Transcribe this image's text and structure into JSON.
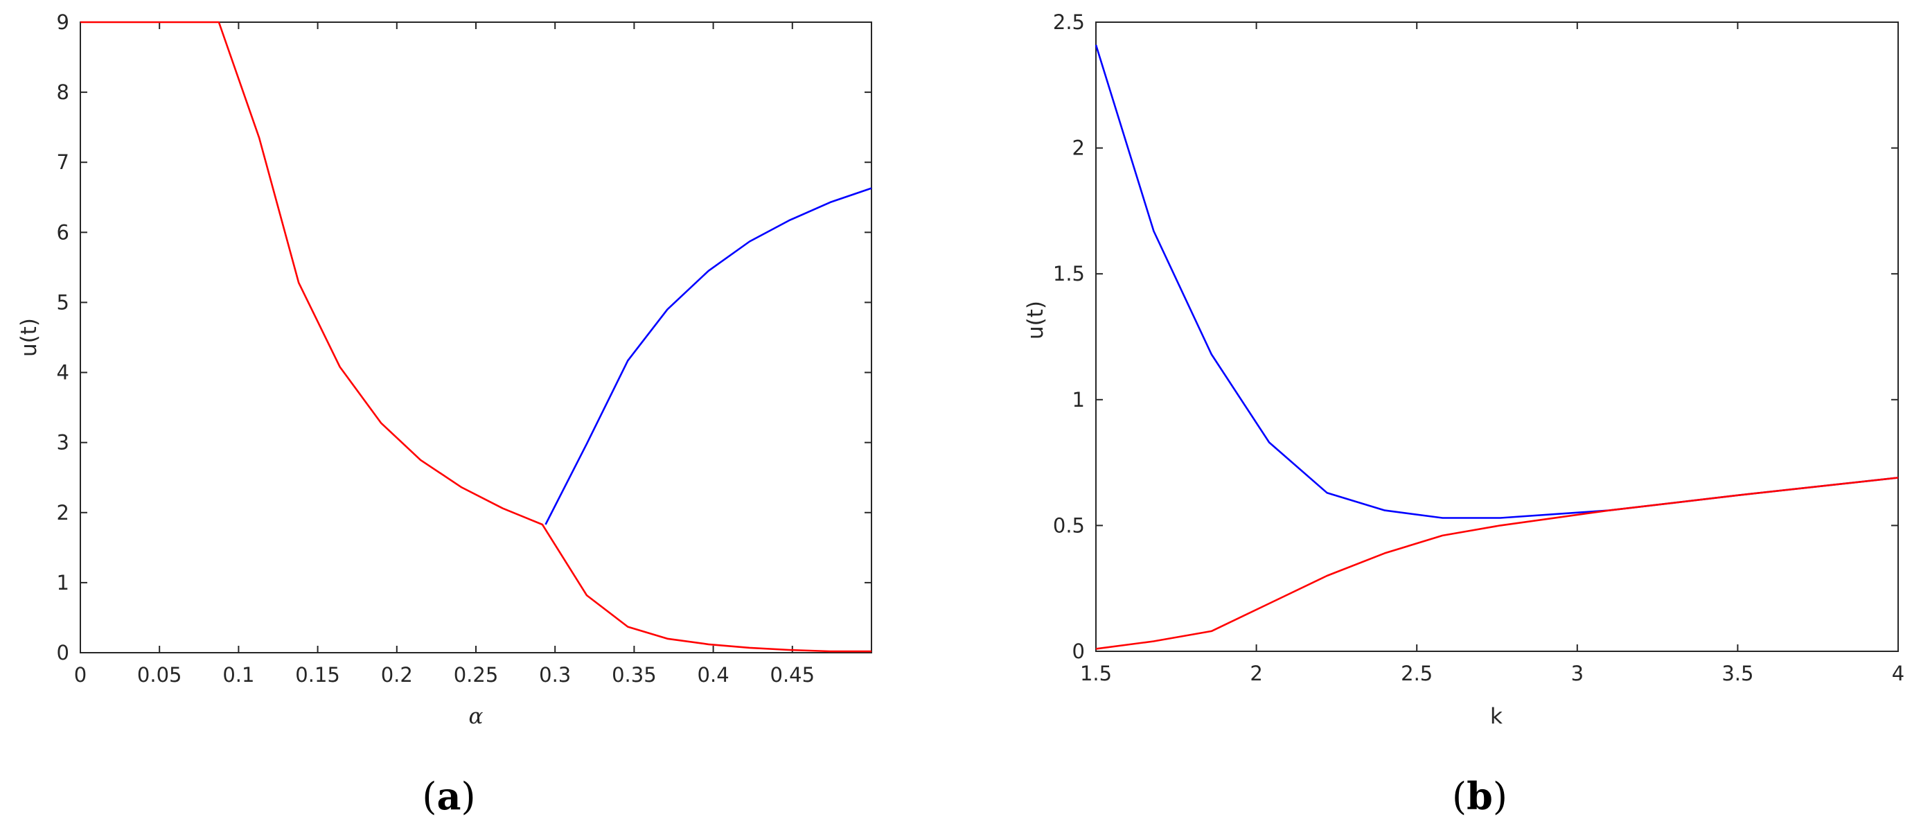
{
  "chart_data": [
    {
      "type": "line",
      "panel_label": "a",
      "xlabel": "α",
      "ylabel": "u(t)",
      "xlim": [
        0,
        0.5
      ],
      "ylim": [
        0,
        9
      ],
      "xticks": [
        "0",
        "0.05",
        "0.1",
        "0.15",
        "0.2",
        "0.25",
        "0.3",
        "0.35",
        "0.4",
        "0.45"
      ],
      "xtick_values": [
        0,
        0.05,
        0.1,
        0.15,
        0.2,
        0.25,
        0.3,
        0.35,
        0.4,
        0.45
      ],
      "yticks": [
        "0",
        "1",
        "2",
        "3",
        "4",
        "5",
        "6",
        "7",
        "8",
        "9"
      ],
      "ytick_values": [
        0,
        1,
        2,
        3,
        4,
        5,
        6,
        7,
        8,
        9
      ],
      "grid": false,
      "series": [
        {
          "color": "#ff0000",
          "x": [
            0,
            0.0875,
            0.113,
            0.138,
            0.164,
            0.19,
            0.215,
            0.241,
            0.267,
            0.292,
            0.32,
            0.346,
            0.371,
            0.397,
            0.423,
            0.448,
            0.474,
            0.5
          ],
          "y": [
            9,
            9,
            7.35,
            5.28,
            4.08,
            3.28,
            2.75,
            2.36,
            2.06,
            1.83,
            0.82,
            0.37,
            0.2,
            0.12,
            0.07,
            0.04,
            0.02,
            0.02
          ]
        },
        {
          "color": "#0000ff",
          "x": [
            0.294,
            0.32,
            0.346,
            0.371,
            0.397,
            0.423,
            0.448,
            0.474,
            0.5
          ],
          "y": [
            1.83,
            2.98,
            4.17,
            4.9,
            5.45,
            5.87,
            6.17,
            6.43,
            6.63
          ]
        }
      ]
    },
    {
      "type": "line",
      "panel_label": "b",
      "xlabel": "k",
      "ylabel": "u(t)",
      "xlim": [
        1.5,
        4
      ],
      "ylim": [
        0,
        2.5
      ],
      "xticks": [
        "1.5",
        "2",
        "2.5",
        "3",
        "3.5",
        "4"
      ],
      "xtick_values": [
        1.5,
        2,
        2.5,
        3,
        3.5,
        4
      ],
      "yticks": [
        "0",
        "0.5",
        "1",
        "1.5",
        "2",
        "2.5"
      ],
      "ytick_values": [
        0,
        0.5,
        1,
        1.5,
        2,
        2.5
      ],
      "grid": false,
      "series": [
        {
          "color": "#0000ff",
          "x": [
            1.5,
            1.68,
            1.86,
            2.04,
            2.22,
            2.4,
            2.58,
            2.76,
            3.1,
            3.5,
            4
          ],
          "y": [
            2.41,
            1.67,
            1.18,
            0.83,
            0.63,
            0.56,
            0.53,
            0.53,
            0.56,
            0.62,
            0.69
          ]
        },
        {
          "color": "#ff0000",
          "x": [
            1.5,
            1.68,
            1.86,
            2.04,
            2.22,
            2.4,
            2.58,
            2.76,
            3.1,
            3.5,
            4
          ],
          "y": [
            0.01,
            0.04,
            0.08,
            0.19,
            0.3,
            0.39,
            0.46,
            0.5,
            0.56,
            0.62,
            0.69
          ]
        }
      ]
    }
  ]
}
